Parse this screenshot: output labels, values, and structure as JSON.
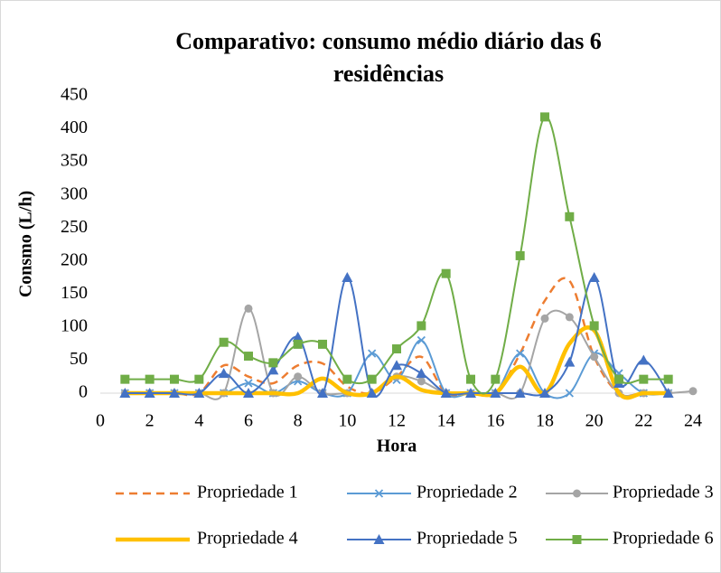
{
  "chart_data": {
    "type": "line",
    "title": [
      "Comparativo: consumo médio diário das 6",
      "residências"
    ],
    "x_label": "Hora",
    "y_label": "Consmo (L/h)",
    "x": [
      1,
      2,
      3,
      4,
      5,
      6,
      7,
      8,
      9,
      10,
      11,
      12,
      13,
      14,
      15,
      16,
      17,
      18,
      19,
      20,
      21,
      22,
      23,
      24
    ],
    "xlim": [
      0,
      24
    ],
    "xticks": [
      0,
      2,
      4,
      6,
      8,
      10,
      12,
      14,
      16,
      18,
      20,
      22,
      24
    ],
    "ylim": [
      0,
      450
    ],
    "yticks": [
      0,
      50,
      100,
      150,
      200,
      250,
      300,
      350,
      400,
      450
    ],
    "grid": false,
    "smooth": true,
    "legend": "bottom",
    "series": [
      {
        "name": "Propriedade 1",
        "color": "#ED7D31",
        "line_style": "dashed",
        "line_width": 2.5,
        "marker": "none",
        "values": [
          0,
          0,
          0,
          0,
          42,
          25,
          15,
          42,
          45,
          10,
          0,
          25,
          55,
          0,
          0,
          0,
          60,
          140,
          170,
          55,
          0,
          0,
          0,
          null
        ]
      },
      {
        "name": "Propriedade 2",
        "color": "#5B9BD5",
        "line_style": "solid",
        "line_width": 2,
        "marker": "x",
        "values": [
          0,
          0,
          0,
          0,
          0,
          15,
          0,
          18,
          0,
          0,
          60,
          20,
          80,
          0,
          0,
          0,
          60,
          0,
          0,
          60,
          30,
          0,
          0,
          null
        ]
      },
      {
        "name": "Propriedade 3",
        "color": "#A5A5A5",
        "line_style": "solid",
        "line_width": 2,
        "marker": "circle",
        "values": [
          0,
          0,
          0,
          0,
          0,
          128,
          0,
          25,
          0,
          0,
          0,
          25,
          18,
          0,
          0,
          0,
          0,
          113,
          115,
          55,
          0,
          0,
          0,
          3
        ]
      },
      {
        "name": "Propriedade 4",
        "color": "#FFC000",
        "line_style": "solid",
        "line_width": 4.5,
        "marker": "none",
        "values": [
          0,
          0,
          0,
          0,
          0,
          0,
          0,
          0,
          22,
          0,
          0,
          25,
          5,
          0,
          0,
          0,
          40,
          0,
          75,
          95,
          0,
          0,
          0,
          null
        ]
      },
      {
        "name": "Propriedade 5",
        "color": "#4472C4",
        "line_style": "solid",
        "line_width": 2,
        "marker": "triangle",
        "values": [
          0,
          0,
          0,
          0,
          30,
          0,
          35,
          85,
          0,
          175,
          0,
          42,
          30,
          0,
          0,
          0,
          0,
          0,
          47,
          175,
          15,
          50,
          0,
          null
        ]
      },
      {
        "name": "Propriedade 6",
        "color": "#70AD47",
        "line_style": "solid",
        "line_width": 2,
        "marker": "square",
        "values": [
          21,
          21,
          21,
          21,
          77,
          56,
          46,
          74,
          74,
          21,
          21,
          67,
          102,
          181,
          21,
          21,
          208,
          418,
          267,
          102,
          21,
          21,
          21,
          null
        ]
      }
    ]
  }
}
